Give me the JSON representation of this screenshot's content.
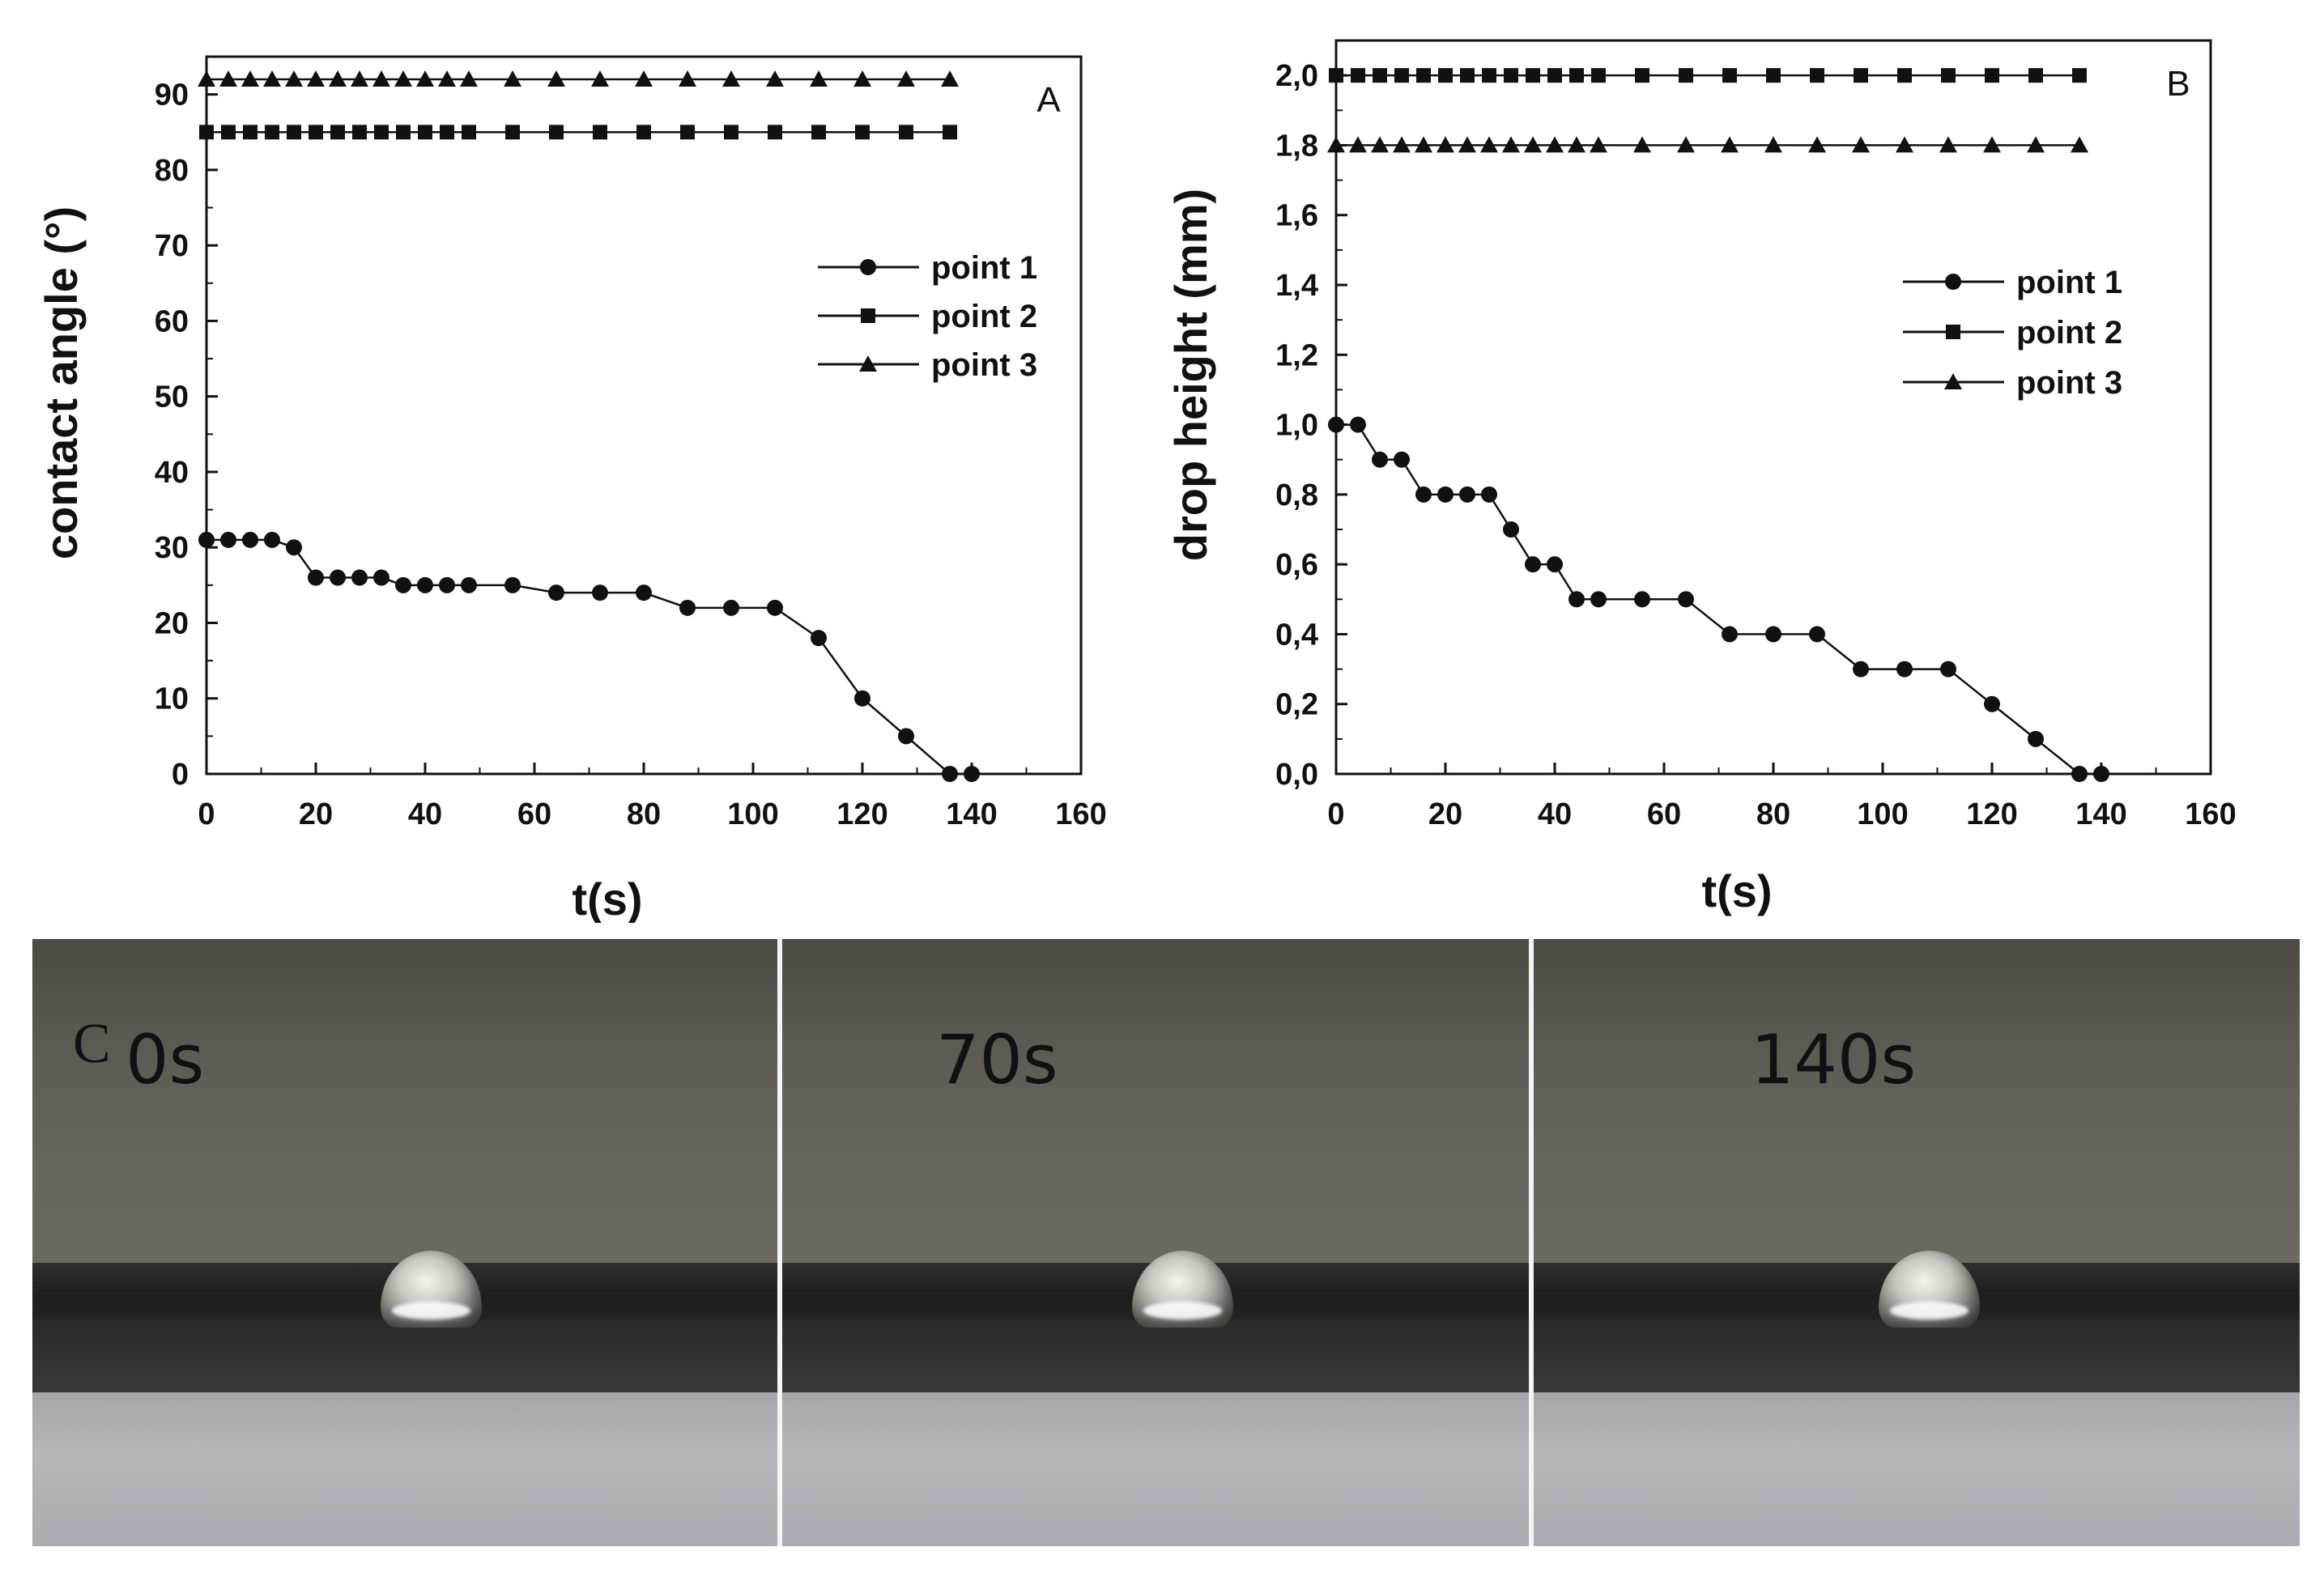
{
  "chart_data": [
    {
      "panel": "A",
      "type": "line",
      "xlabel": "t(s)",
      "ylabel": "contact angle (°)",
      "xlim": [
        0,
        160
      ],
      "ylim": [
        0,
        95
      ],
      "xticks": [
        0,
        20,
        40,
        60,
        80,
        100,
        120,
        140,
        160
      ],
      "yticks": [
        0,
        10,
        20,
        30,
        40,
        50,
        60,
        70,
        80,
        90
      ],
      "tick_labels_y": [
        "0",
        "10",
        "20",
        "30",
        "40",
        "50",
        "60",
        "70",
        "80",
        "90"
      ],
      "legend": "upper-right",
      "series": [
        {
          "name": "point 1",
          "marker": "circle",
          "x": [
            0,
            4,
            8,
            12,
            16,
            20,
            24,
            28,
            32,
            36,
            40,
            44,
            48,
            56,
            64,
            72,
            80,
            88,
            96,
            104,
            112,
            120,
            128,
            136,
            140
          ],
          "y": [
            31,
            31,
            31,
            31,
            30,
            26,
            26,
            26,
            26,
            25,
            25,
            25,
            25,
            25,
            24,
            24,
            24,
            22,
            22,
            22,
            18,
            10,
            5,
            0,
            0
          ]
        },
        {
          "name": "point 2",
          "marker": "square",
          "x": [
            0,
            4,
            8,
            12,
            16,
            20,
            24,
            28,
            32,
            36,
            40,
            44,
            48,
            56,
            64,
            72,
            80,
            88,
            96,
            104,
            112,
            120,
            128,
            136
          ],
          "y": [
            85,
            85,
            85,
            85,
            85,
            85,
            85,
            85,
            85,
            85,
            85,
            85,
            85,
            85,
            85,
            85,
            85,
            85,
            85,
            85,
            85,
            85,
            85,
            85
          ]
        },
        {
          "name": "point 3",
          "marker": "triangle",
          "x": [
            0,
            4,
            8,
            12,
            16,
            20,
            24,
            28,
            32,
            36,
            40,
            44,
            48,
            56,
            64,
            72,
            80,
            88,
            96,
            104,
            112,
            120,
            128,
            136
          ],
          "y": [
            92,
            92,
            92,
            92,
            92,
            92,
            92,
            92,
            92,
            92,
            92,
            92,
            92,
            92,
            92,
            92,
            92,
            92,
            92,
            92,
            92,
            92,
            92,
            92
          ]
        }
      ]
    },
    {
      "panel": "B",
      "type": "line",
      "xlabel": "t(s)",
      "ylabel": "drop height (mm)",
      "xlim": [
        0,
        160
      ],
      "ylim": [
        0,
        2.1
      ],
      "xticks": [
        0,
        20,
        40,
        60,
        80,
        100,
        120,
        140,
        160
      ],
      "yticks": [
        0,
        0.2,
        0.4,
        0.6,
        0.8,
        1.0,
        1.2,
        1.4,
        1.6,
        1.8,
        2.0
      ],
      "tick_labels_y": [
        "0,0",
        "0,2",
        "0,4",
        "0,6",
        "0,8",
        "1,0",
        "1,2",
        "1,4",
        "1,6",
        "1,8",
        "2,0"
      ],
      "legend": "upper-right",
      "series": [
        {
          "name": "point 1",
          "marker": "circle",
          "x": [
            0,
            4,
            8,
            12,
            16,
            20,
            24,
            28,
            32,
            36,
            40,
            44,
            48,
            56,
            64,
            72,
            80,
            88,
            96,
            104,
            112,
            120,
            128,
            136,
            140
          ],
          "y": [
            1.0,
            1.0,
            0.9,
            0.9,
            0.8,
            0.8,
            0.8,
            0.8,
            0.7,
            0.6,
            0.6,
            0.5,
            0.5,
            0.5,
            0.5,
            0.4,
            0.4,
            0.4,
            0.3,
            0.3,
            0.3,
            0.2,
            0.1,
            0.0,
            0.0
          ]
        },
        {
          "name": "point 2",
          "marker": "square",
          "x": [
            0,
            4,
            8,
            12,
            16,
            20,
            24,
            28,
            32,
            36,
            40,
            44,
            48,
            56,
            64,
            72,
            80,
            88,
            96,
            104,
            112,
            120,
            128,
            136
          ],
          "y": [
            2.0,
            2.0,
            2.0,
            2.0,
            2.0,
            2.0,
            2.0,
            2.0,
            2.0,
            2.0,
            2.0,
            2.0,
            2.0,
            2.0,
            2.0,
            2.0,
            2.0,
            2.0,
            2.0,
            2.0,
            2.0,
            2.0,
            2.0,
            2.0
          ]
        },
        {
          "name": "point 3",
          "marker": "triangle",
          "x": [
            0,
            4,
            8,
            12,
            16,
            20,
            24,
            28,
            32,
            36,
            40,
            44,
            48,
            56,
            64,
            72,
            80,
            88,
            96,
            104,
            112,
            120,
            128,
            136
          ],
          "y": [
            1.8,
            1.8,
            1.8,
            1.8,
            1.8,
            1.8,
            1.8,
            1.8,
            1.8,
            1.8,
            1.8,
            1.8,
            1.8,
            1.8,
            1.8,
            1.8,
            1.8,
            1.8,
            1.8,
            1.8,
            1.8,
            1.8,
            1.8,
            1.8
          ]
        }
      ]
    }
  ],
  "photo_panel": {
    "label": "C",
    "frames": [
      {
        "time_label": "0s",
        "drop_style": "drop"
      },
      {
        "time_label": "70s",
        "drop_style": "drop"
      },
      {
        "time_label": "140s",
        "drop_style": "drop"
      }
    ]
  }
}
